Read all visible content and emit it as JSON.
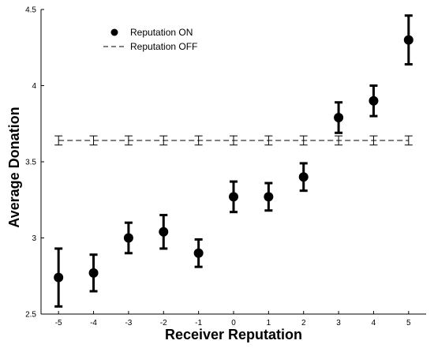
{
  "chart_data": {
    "type": "scatter",
    "xlabel": "Receiver Reputation",
    "ylabel": "Average Donation",
    "xlim": [
      -5.5,
      5.5
    ],
    "ylim": [
      2.5,
      4.5
    ],
    "x_ticks": [
      -5,
      -4,
      -3,
      -2,
      -1,
      0,
      1,
      2,
      3,
      4,
      5
    ],
    "y_ticks": [
      2.5,
      3,
      3.5,
      4,
      4.5
    ],
    "x_tick_labels": [
      "-5",
      "-4",
      "-3",
      "-2",
      "-1",
      "0",
      "1",
      "2",
      "3",
      "4",
      "5"
    ],
    "y_tick_labels": [
      "2.5",
      "3",
      "3.5",
      "4",
      "4.5"
    ],
    "legend_position": "top-left",
    "grid": false,
    "series": [
      {
        "name": "Reputation ON",
        "style": "points-with-errorbars",
        "color": "#000000",
        "x": [
          -5,
          -4,
          -3,
          -2,
          -1,
          0,
          1,
          2,
          3,
          4,
          5
        ],
        "y": [
          2.74,
          2.77,
          3.0,
          3.04,
          2.9,
          3.27,
          3.27,
          3.4,
          3.79,
          3.9,
          4.3
        ],
        "err": [
          0.19,
          0.12,
          0.1,
          0.11,
          0.09,
          0.1,
          0.09,
          0.09,
          0.1,
          0.1,
          0.16
        ]
      },
      {
        "name": "Reputation OFF",
        "style": "dashed-line-with-errorbars",
        "color": "#000000",
        "x": [
          -5,
          -4,
          -3,
          -2,
          -1,
          0,
          1,
          2,
          3,
          4,
          5
        ],
        "y": [
          3.64,
          3.64,
          3.64,
          3.64,
          3.64,
          3.64,
          3.64,
          3.64,
          3.64,
          3.64,
          3.64
        ],
        "err": [
          0.03,
          0.03,
          0.03,
          0.03,
          0.03,
          0.03,
          0.03,
          0.03,
          0.03,
          0.03,
          0.03
        ]
      }
    ]
  }
}
